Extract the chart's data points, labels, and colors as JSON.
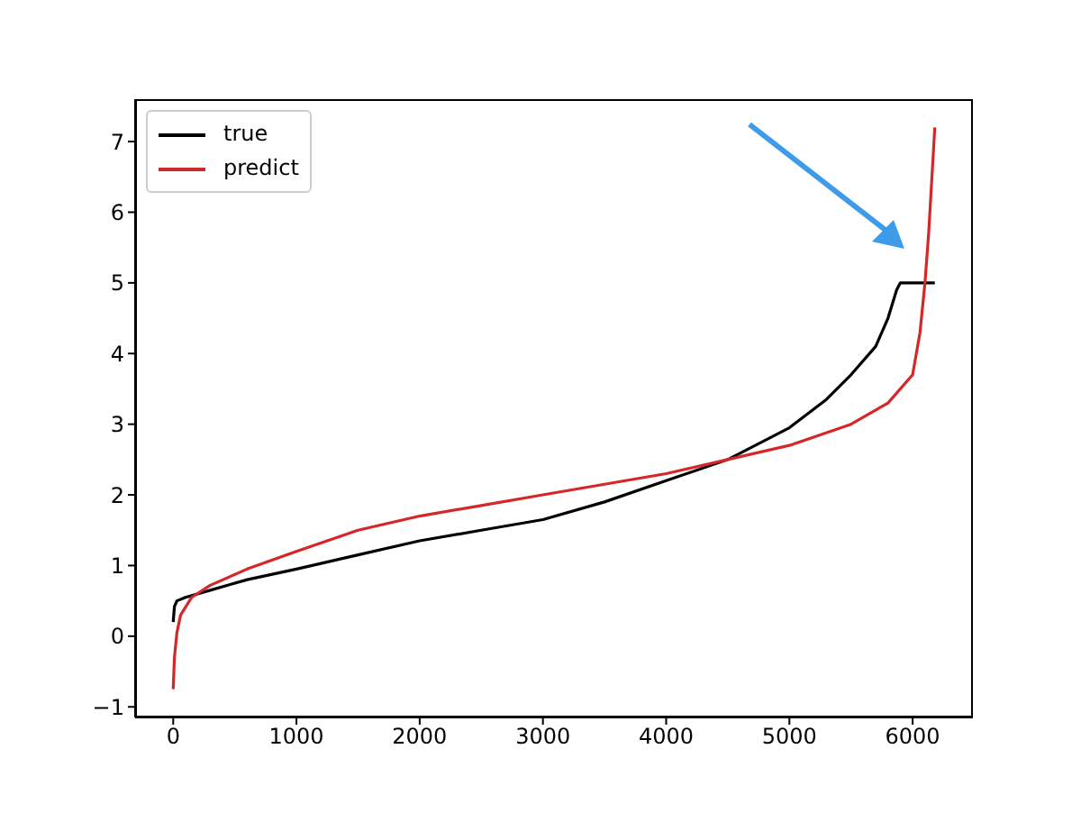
{
  "chart_data": {
    "type": "line",
    "series": [
      {
        "name": "true",
        "color": "#000000",
        "x": [
          0,
          10,
          30,
          100,
          300,
          600,
          1000,
          1500,
          2000,
          2500,
          3000,
          3500,
          4000,
          4500,
          5000,
          5300,
          5500,
          5700,
          5800,
          5870,
          5900,
          6000,
          6180
        ],
        "values": [
          0.2,
          0.42,
          0.5,
          0.55,
          0.65,
          0.8,
          0.95,
          1.15,
          1.35,
          1.5,
          1.65,
          1.9,
          2.2,
          2.5,
          2.95,
          3.35,
          3.7,
          4.1,
          4.5,
          4.9,
          5.0,
          5.0,
          5.0
        ]
      },
      {
        "name": "predict",
        "color": "#d62728",
        "x": [
          0,
          10,
          30,
          60,
          150,
          300,
          600,
          1000,
          1500,
          2000,
          2500,
          3000,
          3500,
          4000,
          4500,
          5000,
          5500,
          5800,
          6000,
          6060,
          6100,
          6130,
          6150,
          6170,
          6180
        ],
        "values": [
          -0.75,
          -0.3,
          0.05,
          0.3,
          0.55,
          0.72,
          0.95,
          1.2,
          1.5,
          1.7,
          1.85,
          2.0,
          2.15,
          2.3,
          2.5,
          2.7,
          3.0,
          3.3,
          3.7,
          4.3,
          5.0,
          5.7,
          6.3,
          6.9,
          7.2
        ]
      }
    ],
    "xlim": [
      -309,
      6489
    ],
    "ylim": [
      -1.15,
      7.6
    ],
    "xticks": [
      0,
      1000,
      2000,
      3000,
      4000,
      5000,
      6000
    ],
    "yticks": [
      -1,
      0,
      1,
      2,
      3,
      4,
      5,
      6,
      7
    ],
    "legend": "top left",
    "marker": "none",
    "line_style": "solid"
  }
}
